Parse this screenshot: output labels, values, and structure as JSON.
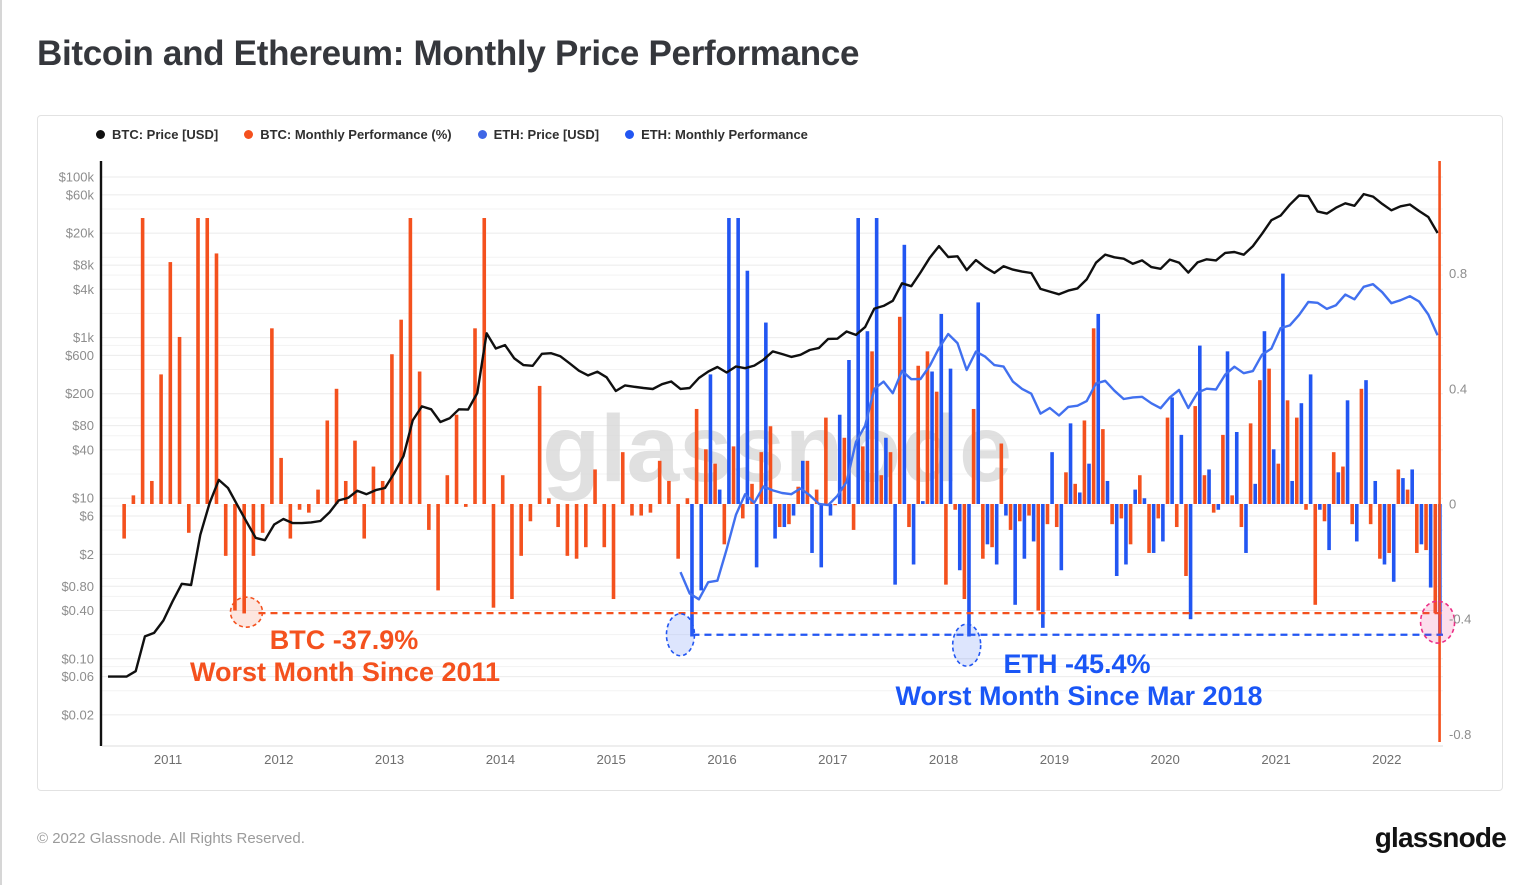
{
  "page": {
    "title": "Bitcoin and Ethereum: Monthly Price Performance",
    "footer_copyright": "© 2022 Glassnode. All Rights Reserved.",
    "footer_logo": "glassnode"
  },
  "watermark": "glassnode",
  "legend": [
    {
      "label": "BTC: Price [USD]",
      "color": "#111111"
    },
    {
      "label": "BTC: Monthly Performance (%)",
      "color": "#f4511e"
    },
    {
      "label": "ETH: Price [USD]",
      "color": "#3f66e6"
    },
    {
      "label": "ETH: Monthly Performance",
      "color": "#2256f2"
    }
  ],
  "annotations": {
    "btc": {
      "line1": "BTC -37.9%",
      "line2": "Worst Month Since 2011",
      "value": -0.379,
      "color": "#f4511e"
    },
    "eth": {
      "line1": "ETH -45.4%",
      "line2": "Worst Month Since Mar 2018",
      "value": -0.454,
      "color": "#1a56f6"
    }
  },
  "chart_data": {
    "type": "combo",
    "title": "Bitcoin and Ethereum: Monthly Price Performance",
    "grid": true,
    "legend_position": "top",
    "x_axis": {
      "ticks": [
        "2011",
        "2012",
        "2013",
        "2014",
        "2015",
        "2016",
        "2017",
        "2018",
        "2019",
        "2020",
        "2021",
        "2022"
      ]
    },
    "y_axis_price": {
      "side": "left",
      "scale": "log",
      "ticks": [
        {
          "label": "$100k",
          "value": 100000
        },
        {
          "label": "$60k",
          "value": 60000
        },
        {
          "label": "$20k",
          "value": 20000
        },
        {
          "label": "$8k",
          "value": 8000
        },
        {
          "label": "$4k",
          "value": 4000
        },
        {
          "label": "$1k",
          "value": 1000
        },
        {
          "label": "$600",
          "value": 600
        },
        {
          "label": "$200",
          "value": 200
        },
        {
          "label": "$80",
          "value": 80
        },
        {
          "label": "$40",
          "value": 40
        },
        {
          "label": "$10",
          "value": 10
        },
        {
          "label": "$6",
          "value": 6
        },
        {
          "label": "$2",
          "value": 2
        },
        {
          "label": "$0.80",
          "value": 0.8
        },
        {
          "label": "$0.40",
          "value": 0.4
        },
        {
          "label": "$0.10",
          "value": 0.1
        },
        {
          "label": "$0.06",
          "value": 0.06
        },
        {
          "label": "$0.02",
          "value": 0.02
        }
      ],
      "minor_gridlines": [
        40000,
        10000,
        6000,
        2000,
        800,
        400,
        100,
        60,
        20,
        8,
        4,
        1,
        0.6,
        0.2,
        0.08,
        0.04
      ]
    },
    "y_axis_perf": {
      "side": "right",
      "scale": "linear",
      "range": [
        -0.83,
        1.19
      ],
      "ticks": [
        {
          "label": "0.8",
          "value": 0.8
        },
        {
          "label": "0.4",
          "value": 0.4
        },
        {
          "label": "0",
          "value": 0
        },
        {
          "label": "-0.4",
          "value": -0.4
        },
        {
          "label": "-0.8",
          "value": -0.8
        }
      ]
    },
    "series": {
      "btc_price_usd": {
        "name": "BTC: Price [USD]",
        "type": "line",
        "axis": "price",
        "color": "#101010",
        "start": "2010-06",
        "values": [
          0.06,
          0.06,
          0.06,
          0.07,
          0.19,
          0.21,
          0.3,
          0.52,
          0.86,
          0.83,
          3.5,
          8.7,
          16.9,
          13.4,
          8.2,
          5.1,
          3.2,
          3.0,
          4.7,
          5.5,
          4.9,
          4.9,
          5.0,
          5.2,
          6.7,
          9.4,
          10.1,
          12.4,
          11.2,
          12.6,
          13.4,
          20.4,
          33.4,
          93,
          139,
          128,
          89,
          99,
          128,
          127,
          204,
          1130,
          732,
          806,
          550,
          454,
          446,
          629,
          640,
          585,
          478,
          387,
          338,
          376,
          320,
          216,
          254,
          244,
          236,
          229,
          263,
          284,
          230,
          236,
          314,
          377,
          430,
          368,
          437,
          416,
          448,
          531,
          673,
          624,
          575,
          610,
          700,
          745,
          963,
          970,
          1190,
          1080,
          1350,
          2300,
          2480,
          2875,
          4740,
          4360,
          6470,
          9900,
          13800,
          10100,
          10300,
          6930,
          9240,
          7500,
          6400,
          7750,
          7030,
          6630,
          6370,
          4040,
          3740,
          3460,
          3850,
          4100,
          5300,
          8560,
          10800,
          10000,
          9600,
          8300,
          9150,
          7550,
          7190,
          9350,
          8600,
          6440,
          8630,
          9450,
          9140,
          11350,
          11650,
          10780,
          13800,
          19700,
          29000,
          33100,
          45200,
          58800,
          57750,
          37300,
          35000,
          41500,
          47100,
          43800,
          61300,
          57000,
          46200,
          38500,
          43200,
          45500,
          37700,
          31800,
          20100
        ]
      },
      "btc_monthly_performance_pct": {
        "name": "BTC: Monthly Performance (%)",
        "type": "bar",
        "axis": "perf",
        "color": "#f4511e",
        "start": "2010-08",
        "values": [
          -0.12,
          0.03,
          1.02,
          0.08,
          0.45,
          0.84,
          0.58,
          -0.1,
          1.02,
          1.02,
          0.87,
          -0.18,
          -0.37,
          -0.38,
          -0.18,
          -0.1,
          0.61,
          0.16,
          -0.12,
          -0.02,
          -0.03,
          0.05,
          0.29,
          0.4,
          0.08,
          0.22,
          -0.12,
          0.13,
          0.08,
          0.52,
          0.64,
          1.02,
          0.46,
          -0.09,
          -0.3,
          0.1,
          0.31,
          -0.01,
          0.61,
          1.02,
          -0.36,
          0.1,
          -0.33,
          -0.18,
          -0.06,
          0.41,
          0.02,
          -0.08,
          -0.18,
          -0.19,
          -0.15,
          0.12,
          -0.15,
          -0.33,
          0.18,
          -0.04,
          -0.04,
          -0.03,
          0.15,
          0.08,
          -0.19,
          0.02,
          0.33,
          0.19,
          0.14,
          -0.14,
          0.2,
          -0.05,
          0.07,
          0.18,
          0.27,
          -0.08,
          -0.07,
          0.06,
          0.15,
          0.05,
          0.3,
          0.0,
          0.23,
          -0.09,
          0.2,
          0.53,
          0.1,
          0.18,
          0.65,
          -0.08,
          0.48,
          0.53,
          0.39,
          -0.28,
          -0.02,
          -0.33,
          0.33,
          -0.19,
          -0.15,
          0.21,
          -0.09,
          -0.06,
          -0.04,
          -0.37,
          -0.07,
          -0.08,
          0.11,
          0.07,
          0.29,
          0.61,
          0.26,
          -0.07,
          -0.05,
          -0.14,
          0.1,
          -0.17,
          -0.05,
          0.3,
          -0.08,
          -0.25,
          0.34,
          0.1,
          -0.03,
          0.24,
          0.03,
          -0.08,
          0.28,
          0.43,
          0.47,
          0.14,
          0.36,
          0.3,
          -0.02,
          -0.35,
          -0.06,
          0.18,
          0.13,
          -0.07,
          0.4,
          -0.07,
          -0.19,
          -0.17,
          0.12,
          0.05,
          -0.17,
          -0.16,
          -0.379
        ]
      },
      "eth_price_usd": {
        "name": "ETH: Price [USD]",
        "type": "line",
        "axis": "price",
        "color": "#4170ef",
        "start": "2015-08",
        "values": [
          1.2,
          0.65,
          0.55,
          0.9,
          0.94,
          2.3,
          6.2,
          11.2,
          8.8,
          14.0,
          12.5,
          11.6,
          11.2,
          13.2,
          10.9,
          8.5,
          8.2,
          10.7,
          16,
          50,
          80,
          230,
          283,
          203,
          385,
          303,
          305,
          445,
          740,
          1110,
          855,
          395,
          670,
          580,
          455,
          435,
          283,
          230,
          200,
          113,
          133,
          107,
          137,
          142,
          162,
          268,
          290,
          218,
          172,
          180,
          183,
          152,
          132,
          180,
          223,
          133,
          206,
          231,
          226,
          346,
          434,
          360,
          383,
          615,
          730,
          1315,
          1420,
          1920,
          2775,
          2710,
          2275,
          2530,
          3430,
          3000,
          4290,
          4630,
          3680,
          2685,
          2920,
          3280,
          2815,
          1940,
          1070
        ]
      },
      "eth_monthly_performance": {
        "name": "ETH: Monthly Performance",
        "type": "bar",
        "axis": "perf",
        "color": "#2256f2",
        "start": "2015-09",
        "values": [
          -0.46,
          -0.3,
          0.45,
          0.05,
          1.02,
          1.02,
          0.81,
          -0.22,
          0.63,
          -0.12,
          -0.08,
          -0.04,
          0.15,
          -0.17,
          -0.22,
          -0.04,
          0.31,
          0.5,
          1.02,
          0.6,
          1.02,
          0.23,
          -0.28,
          0.9,
          -0.21,
          0.01,
          0.46,
          0.66,
          0.47,
          -0.23,
          -0.46,
          0.7,
          -0.14,
          -0.21,
          -0.04,
          -0.35,
          -0.19,
          -0.13,
          -0.43,
          0.18,
          -0.23,
          0.28,
          0.04,
          0.14,
          0.66,
          0.08,
          -0.25,
          -0.21,
          0.05,
          0.02,
          -0.17,
          -0.13,
          0.37,
          0.24,
          -0.4,
          0.55,
          0.12,
          -0.02,
          0.53,
          0.25,
          -0.17,
          0.07,
          0.6,
          0.19,
          0.8,
          0.08,
          0.35,
          0.45,
          -0.02,
          -0.16,
          0.11,
          0.36,
          -0.13,
          0.43,
          0.08,
          -0.21,
          -0.27,
          0.09,
          0.12,
          -0.14,
          -0.29,
          -0.454
        ]
      }
    },
    "highlights": {
      "btc_worst_level": {
        "month": "2011-09",
        "value": -0.379,
        "color": "#f4511e"
      },
      "eth_worst_level": {
        "month": "2015-08",
        "value": -0.454,
        "color": "#2256f2"
      },
      "eth_mar2018_circle": {
        "month": "2018-03",
        "value": -0.49,
        "color": "#2256f2"
      },
      "current_month_circle": {
        "month": "2022-06",
        "value": -0.41,
        "color": "#ec2f86"
      },
      "current_month_marker": {
        "month": "2022-06",
        "color": "#f4511e"
      }
    }
  }
}
